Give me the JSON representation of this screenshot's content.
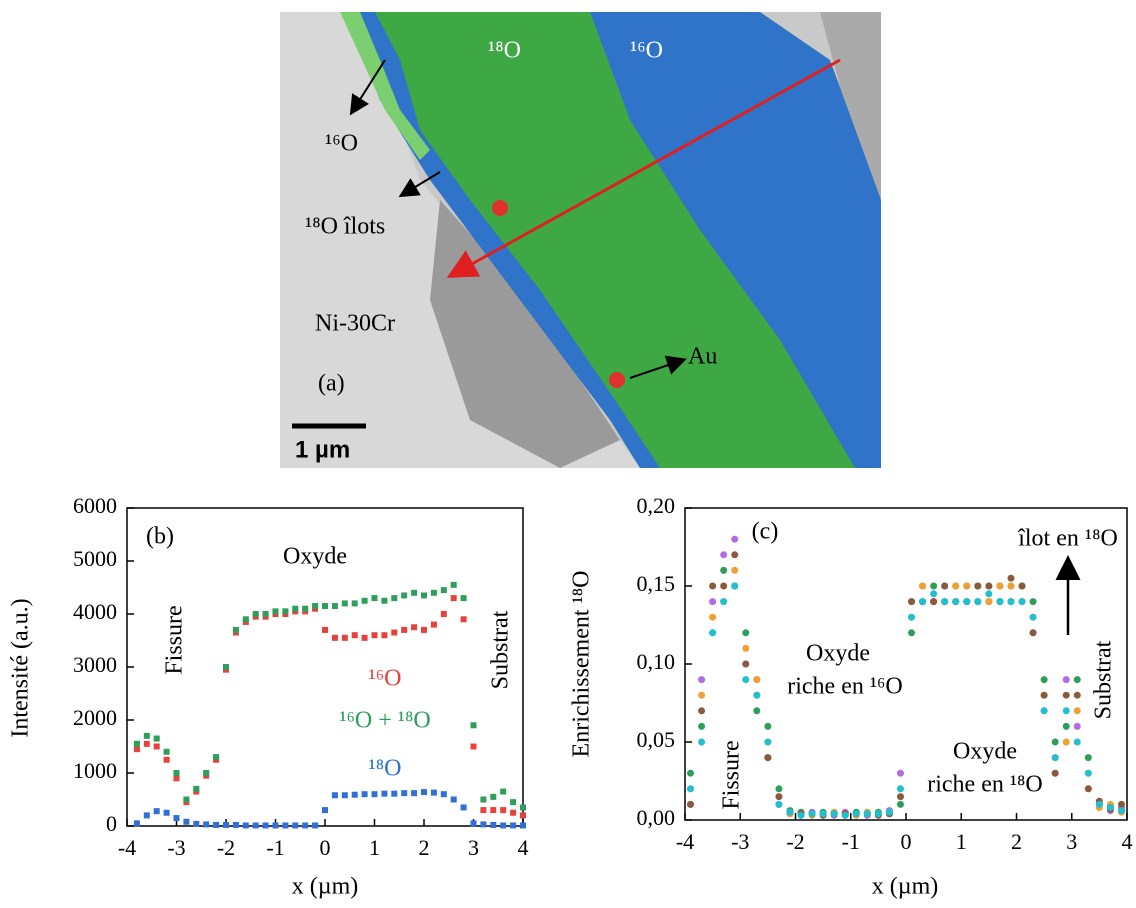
{
  "micrograph": {
    "labels": [
      "¹⁸O",
      "¹⁶O",
      "¹⁶O",
      "¹⁸O îlots",
      "Ni-30Cr",
      "(a)",
      "Au"
    ],
    "scale_bar": "1 µm"
  },
  "chart_data": [
    {
      "type": "scatter",
      "marker": "square",
      "xlabel": "x (µm)",
      "ylabel": "Intensité (a.u.)",
      "xlim": [
        -4,
        4
      ],
      "xticks": [
        -4,
        -3,
        -2,
        -1,
        0,
        1,
        2,
        3,
        4
      ],
      "ylim": [
        0,
        6000
      ],
      "yticks": [
        0,
        1000,
        2000,
        3000,
        4000,
        5000,
        6000
      ],
      "annotations": [
        "(b)",
        "Oxyde",
        "Fissure",
        "Substrat"
      ],
      "x": [
        -3.8,
        -3.6,
        -3.4,
        -3.2,
        -3.0,
        -2.8,
        -2.6,
        -2.4,
        -2.2,
        -2.0,
        -1.8,
        -1.6,
        -1.4,
        -1.2,
        -1.0,
        -0.8,
        -0.6,
        -0.4,
        -0.2,
        0.0,
        0.2,
        0.4,
        0.6,
        0.8,
        1.0,
        1.2,
        1.4,
        1.6,
        1.8,
        2.0,
        2.2,
        2.4,
        2.6,
        2.8,
        3.0,
        3.2,
        3.4,
        3.6,
        3.8,
        4.0
      ],
      "series": [
        {
          "name": "¹⁶O",
          "color": "#e8413c",
          "values": [
            1450,
            1550,
            1500,
            1250,
            900,
            450,
            650,
            950,
            1250,
            2950,
            3650,
            3850,
            3950,
            3950,
            4000,
            4000,
            4050,
            4050,
            4100,
            3700,
            3550,
            3550,
            3600,
            3550,
            3600,
            3600,
            3650,
            3700,
            3750,
            3700,
            3800,
            4000,
            4300,
            3900,
            1500,
            300,
            300,
            300,
            250,
            200
          ]
        },
        {
          "name": "¹⁶O + ¹⁸O",
          "color": "#2e9e5b",
          "values": [
            1550,
            1700,
            1650,
            1400,
            1000,
            500,
            700,
            1000,
            1300,
            3000,
            3700,
            3900,
            4000,
            4000,
            4050,
            4050,
            4100,
            4100,
            4150,
            4150,
            4150,
            4200,
            4200,
            4250,
            4300,
            4250,
            4300,
            4350,
            4400,
            4350,
            4400,
            4450,
            4550,
            4300,
            1900,
            500,
            550,
            650,
            450,
            350
          ]
        },
        {
          "name": "¹⁸O",
          "color": "#2f6fd6",
          "values": [
            50,
            200,
            280,
            250,
            150,
            80,
            40,
            30,
            20,
            20,
            20,
            10,
            10,
            10,
            10,
            10,
            10,
            10,
            10,
            300,
            580,
            580,
            590,
            600,
            600,
            610,
            610,
            620,
            620,
            640,
            630,
            600,
            500,
            350,
            50,
            30,
            20,
            10,
            10,
            10
          ]
        }
      ]
    },
    {
      "type": "scatter",
      "marker": "circle",
      "xlabel": "x (µm)",
      "ylabel": "Enrichissement ¹⁸O",
      "xlim": [
        -4,
        4
      ],
      "xticks": [
        -4,
        -3,
        -2,
        -1,
        0,
        1,
        2,
        3,
        4
      ],
      "ylim": [
        0,
        0.2
      ],
      "yticks": [
        {
          "value": 0,
          "label": "0,00"
        },
        {
          "value": 0.05,
          "label": "0,05"
        },
        {
          "value": 0.1,
          "label": "0,10"
        },
        {
          "value": 0.15,
          "label": "0,15"
        },
        {
          "value": 0.2,
          "label": "0,20"
        }
      ],
      "annotations": [
        "(c)",
        "îlot en ¹⁸O",
        "Oxyde",
        "riche en ¹⁶O",
        "Oxyde",
        "riche en ¹⁸O",
        "Fissure",
        "Substrat"
      ],
      "x": [
        -3.9,
        -3.7,
        -3.5,
        -3.3,
        -3.1,
        -2.9,
        -2.7,
        -2.5,
        -2.3,
        -2.1,
        -1.9,
        -1.7,
        -1.5,
        -1.3,
        -1.1,
        -0.9,
        -0.7,
        -0.5,
        -0.3,
        -0.1,
        0.1,
        0.3,
        0.5,
        0.7,
        0.9,
        1.1,
        1.3,
        1.5,
        1.7,
        1.9,
        2.1,
        2.3,
        2.5,
        2.7,
        2.9,
        3.1,
        3.3,
        3.5,
        3.7,
        3.9
      ],
      "series": [
        {
          "color": "#b36ae2",
          "values": [
            0.01,
            0.09,
            0.14,
            0.17,
            0.18,
            0.1,
            0.09,
            0.04,
            0.01,
            0.004,
            0.003,
            0.005,
            0.004,
            0.003,
            0.005,
            0.004,
            0.003,
            0.004,
            0.006,
            0.03,
            0.14,
            0.15,
            0.14,
            0.15,
            0.14,
            0.15,
            0.14,
            0.15,
            0.14,
            0.15,
            0.14,
            0.12,
            0.07,
            0.03,
            0.09,
            0.06,
            0.02,
            0.01,
            0.006,
            0.008
          ]
        },
        {
          "color": "#2e9e5b",
          "values": [
            0.03,
            0.06,
            0.12,
            0.16,
            0.15,
            0.12,
            0.07,
            0.06,
            0.02,
            0.006,
            0.005,
            0.004,
            0.005,
            0.004,
            0.003,
            0.005,
            0.004,
            0.005,
            0.004,
            0.01,
            0.12,
            0.14,
            0.15,
            0.14,
            0.15,
            0.14,
            0.15,
            0.14,
            0.15,
            0.14,
            0.15,
            0.14,
            0.09,
            0.05,
            0.06,
            0.09,
            0.04,
            0.01,
            0.009,
            0.006
          ]
        },
        {
          "color": "#f0a030",
          "values": [
            0.02,
            0.08,
            0.13,
            0.14,
            0.16,
            0.11,
            0.09,
            0.05,
            0.01,
            0.004,
            0.004,
            0.003,
            0.004,
            0.005,
            0.004,
            0.003,
            0.005,
            0.004,
            0.005,
            0.02,
            0.13,
            0.15,
            0.14,
            0.14,
            0.15,
            0.15,
            0.14,
            0.14,
            0.15,
            0.15,
            0.14,
            0.13,
            0.08,
            0.04,
            0.05,
            0.07,
            0.03,
            0.008,
            0.01,
            0.005
          ]
        },
        {
          "color": "#8b5a3c",
          "values": [
            0.01,
            0.07,
            0.15,
            0.15,
            0.17,
            0.1,
            0.08,
            0.04,
            0.015,
            0.005,
            0.004,
            0.004,
            0.003,
            0.004,
            0.004,
            0.004,
            0.004,
            0.003,
            0.004,
            0.015,
            0.14,
            0.14,
            0.14,
            0.15,
            0.14,
            0.14,
            0.15,
            0.15,
            0.14,
            0.155,
            0.15,
            0.12,
            0.08,
            0.03,
            0.08,
            0.08,
            0.02,
            0.012,
            0.007,
            0.01
          ]
        },
        {
          "color": "#20c0d0",
          "values": [
            0.02,
            0.05,
            0.12,
            0.14,
            0.15,
            0.09,
            0.08,
            0.05,
            0.01,
            0.005,
            0.003,
            0.004,
            0.004,
            0.004,
            0.003,
            0.004,
            0.004,
            0.004,
            0.005,
            0.02,
            0.13,
            0.14,
            0.145,
            0.14,
            0.14,
            0.14,
            0.14,
            0.145,
            0.14,
            0.14,
            0.14,
            0.13,
            0.07,
            0.04,
            0.07,
            0.05,
            0.03,
            0.01,
            0.008,
            0.006
          ]
        }
      ]
    }
  ]
}
